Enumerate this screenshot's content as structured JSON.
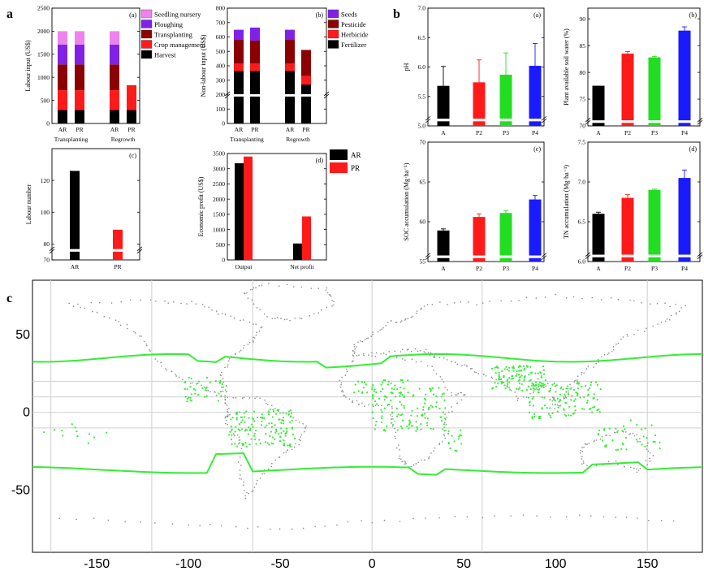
{
  "figure": {
    "letters": [
      "a",
      "b",
      "c"
    ]
  },
  "chart_data": [
    {
      "id": "a-a",
      "panel_label": "(a)",
      "type": "bar",
      "stacked": true,
      "ylabel": "Labour input (US$)",
      "ylim": [
        0,
        2500
      ],
      "yticks": [
        "0",
        "500",
        "1000",
        "1500",
        "2000",
        "2500"
      ],
      "groups": [
        "Transplanting",
        "Regrowth"
      ],
      "categories": [
        "AR",
        "PR",
        "AR",
        "PR"
      ],
      "category_group": [
        0,
        0,
        1,
        1
      ],
      "series": [
        {
          "name": "Harvest",
          "color": "#000000",
          "values": [
            290,
            290,
            290,
            290
          ]
        },
        {
          "name": "Crop management",
          "color": "#ff1a1a",
          "values": [
            430,
            430,
            430,
            540
          ]
        },
        {
          "name": "Transplanting",
          "color": "#8b0000",
          "values": [
            560,
            560,
            560,
            0
          ]
        },
        {
          "name": "Ploughing",
          "color": "#7f22e6",
          "values": [
            430,
            430,
            430,
            0
          ]
        },
        {
          "name": "Seedling nursery",
          "color": "#ee82ee",
          "values": [
            290,
            290,
            290,
            0
          ]
        }
      ],
      "legend_order": [
        "Seedling nursery",
        "Ploughing",
        "Transplanting",
        "Crop management",
        "Harvest"
      ]
    },
    {
      "id": "a-b",
      "panel_label": "(b)",
      "type": "bar",
      "stacked": true,
      "axis_break": true,
      "ylabel": "Non-labour input (US$)",
      "ylim": [
        0,
        800
      ],
      "yticks": [
        "0",
        "100",
        "200",
        "300",
        "400",
        "500",
        "600",
        "700",
        "800"
      ],
      "groups": [
        "Transplanting",
        "Regrowth"
      ],
      "categories": [
        "AR",
        "PR",
        "AR",
        "PR"
      ],
      "category_group": [
        0,
        0,
        1,
        1
      ],
      "series": [
        {
          "name": "Fertilizer",
          "color": "#000000",
          "values": [
            365,
            365,
            365,
            270
          ]
        },
        {
          "name": "Herbicide",
          "color": "#ff1a1a",
          "values": [
            50,
            50,
            50,
            60
          ]
        },
        {
          "name": "Pesticide",
          "color": "#8b0000",
          "values": [
            165,
            160,
            165,
            180
          ]
        },
        {
          "name": "Seeds",
          "color": "#7f22e6",
          "values": [
            70,
            90,
            70,
            0
          ]
        }
      ],
      "legend_order": [
        "Seeds",
        "Pesticide",
        "Herbicide",
        "Fertilizer"
      ]
    },
    {
      "id": "a-c",
      "panel_label": "(c)",
      "type": "bar",
      "axis_break": true,
      "ylabel": "Labour number",
      "ylim": [
        70,
        140
      ],
      "yticks": [
        "70",
        "80",
        "100",
        "120"
      ],
      "ytick_values": [
        70,
        80,
        100,
        120
      ],
      "categories": [
        "AR",
        "PR"
      ],
      "values": [
        126,
        89
      ],
      "colors": [
        "#000000",
        "#ff1a1a"
      ]
    },
    {
      "id": "a-d",
      "panel_label": "(d)",
      "type": "bar",
      "ylabel": "Economic profit (US$)",
      "ylim": [
        0,
        3500
      ],
      "yticks": [
        "0",
        "500",
        "1000",
        "1500",
        "2000",
        "2500",
        "3000",
        "3500"
      ],
      "categories": [
        "Output",
        "Net profit"
      ],
      "series": [
        {
          "name": "AR",
          "color": "#000000",
          "values": [
            3180,
            540
          ]
        },
        {
          "name": "PR",
          "color": "#ff1a1a",
          "values": [
            3400,
            1430
          ]
        }
      ]
    },
    {
      "id": "b-a",
      "panel_label": "(a)",
      "type": "bar",
      "axis_break": true,
      "ylabel": "pH",
      "ylim": [
        5.0,
        7.0
      ],
      "yticks": [
        "5.0",
        "5.5",
        "6.0",
        "6.5",
        "7.0"
      ],
      "ytick_values": [
        5.0,
        5.5,
        6.0,
        6.5,
        7.0
      ],
      "categories": [
        "A",
        "P2",
        "P3",
        "P4"
      ],
      "values": [
        5.68,
        5.74,
        5.87,
        6.02
      ],
      "errors": [
        0.33,
        0.38,
        0.37,
        0.38
      ],
      "colors": [
        "#000000",
        "#ff1a1a",
        "#22dd22",
        "#1a1aff"
      ]
    },
    {
      "id": "b-b",
      "panel_label": "(b)",
      "type": "bar",
      "axis_break": true,
      "ylabel": "Plant available soil water (%)",
      "ylim": [
        70,
        92
      ],
      "yticks": [
        "70",
        "75",
        "80",
        "85",
        "90"
      ],
      "ytick_values": [
        70,
        75,
        80,
        85,
        90
      ],
      "categories": [
        "A",
        "P2",
        "P3",
        "P4"
      ],
      "values": [
        77.5,
        83.5,
        82.8,
        87.8
      ],
      "errors": [
        0,
        0.4,
        0.2,
        0.7
      ],
      "colors": [
        "#000000",
        "#ff1a1a",
        "#22dd22",
        "#1a1aff"
      ]
    },
    {
      "id": "b-c",
      "panel_label": "(c)",
      "type": "bar",
      "axis_break": true,
      "ylabel": "SOC accumulation (Mg·ha⁻¹)",
      "ylim": [
        55,
        70
      ],
      "yticks": [
        "55",
        "60",
        "65",
        "70"
      ],
      "ytick_values": [
        55,
        60,
        65,
        70
      ],
      "categories": [
        "A",
        "P2",
        "P3",
        "P4"
      ],
      "values": [
        58.9,
        60.6,
        61.1,
        62.8
      ],
      "errors": [
        0.2,
        0.4,
        0.3,
        0.5
      ],
      "colors": [
        "#000000",
        "#ff1a1a",
        "#22dd22",
        "#1a1aff"
      ]
    },
    {
      "id": "b-d",
      "panel_label": "(d)",
      "type": "bar",
      "axis_break": true,
      "ylabel": "TN accumulation (Mg·ha⁻¹)",
      "ylim": [
        6.0,
        7.5
      ],
      "yticks": [
        "6.0",
        "6.5",
        "7.0",
        "7.5"
      ],
      "ytick_values": [
        6.0,
        6.5,
        7.0,
        7.5
      ],
      "categories": [
        "A",
        "P2",
        "P3",
        "P4"
      ],
      "values": [
        6.6,
        6.8,
        6.9,
        7.05
      ],
      "errors": [
        0.02,
        0.04,
        0.01,
        0.1
      ],
      "colors": [
        "#000000",
        "#ff1a1a",
        "#22dd22",
        "#1a1aff"
      ]
    },
    {
      "id": "c",
      "type": "map",
      "xticks": [
        "-150",
        "-100",
        "-50",
        "0",
        "50",
        "100",
        "150"
      ],
      "xtick_values": [
        -150,
        -100,
        -50,
        0,
        50,
        100,
        150
      ],
      "yticks": [
        "50",
        "0",
        "-50"
      ],
      "ytick_values": [
        50,
        0,
        -50
      ],
      "xlim": [
        -185,
        180
      ],
      "ylim": [
        -90,
        85
      ],
      "boundary_lat": [
        35,
        -35
      ],
      "boundary_color": "#33ee33",
      "point_color": "#33ee33"
    }
  ]
}
